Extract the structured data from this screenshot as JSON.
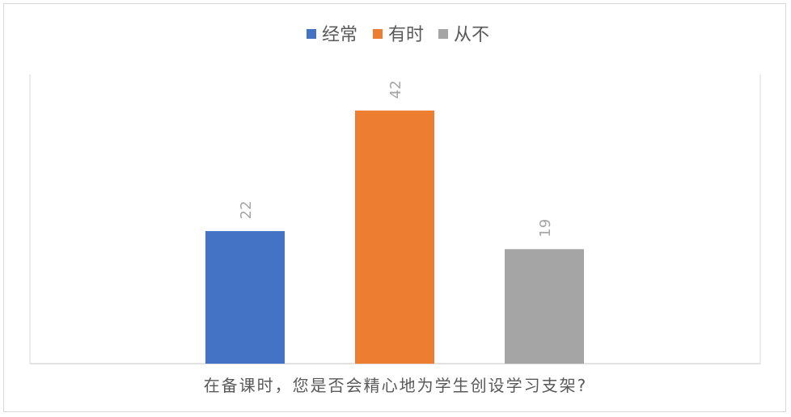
{
  "chart_data": {
    "type": "bar",
    "categories": [
      "经常",
      "有时",
      "从不"
    ],
    "values": [
      22,
      42,
      19
    ],
    "colors": [
      "#4472c4",
      "#ed7d31",
      "#a5a5a5"
    ],
    "xlabel": "在备课时，您是否会精心地为学生创设学习支架?",
    "ylabel": "",
    "ylim": [
      0,
      48
    ],
    "legend_position": "top-center",
    "grid": false,
    "data_labels": true,
    "data_label_rotation": "vertical"
  }
}
